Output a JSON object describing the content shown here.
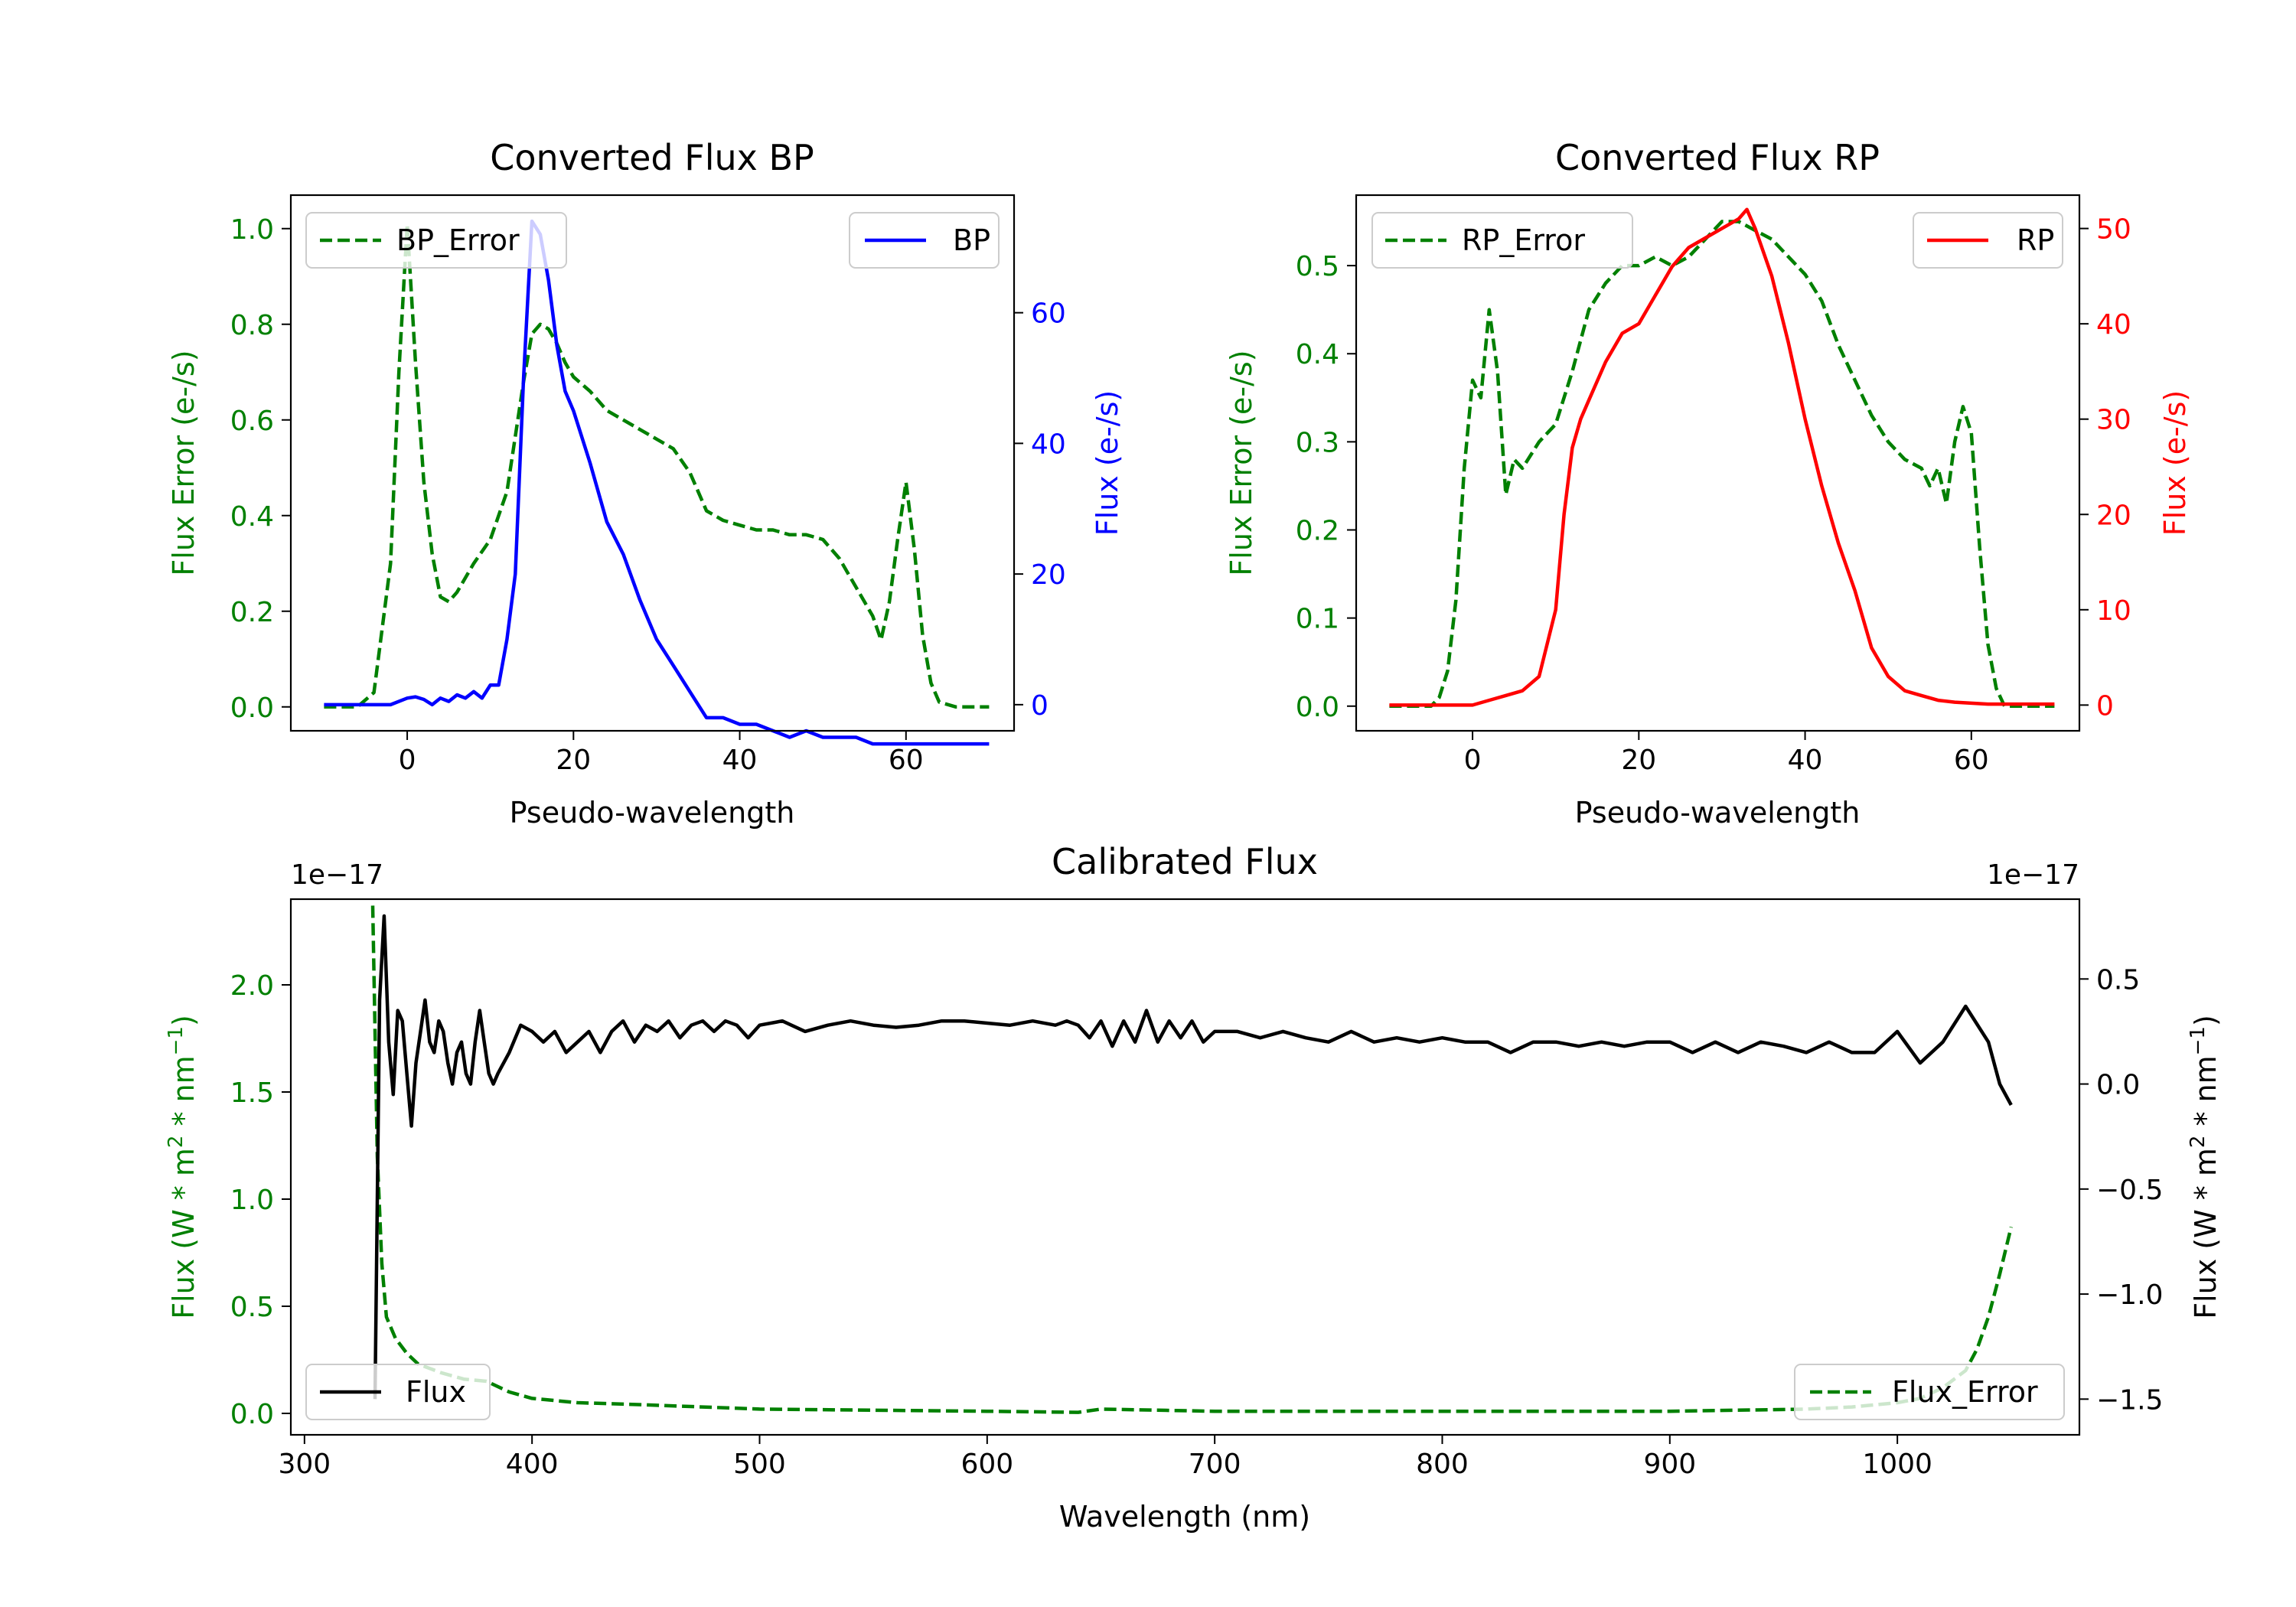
{
  "chart_data": [
    {
      "type": "line",
      "title": "Converted Flux BP",
      "xlabel": "Pseudo-wavelength",
      "ylabel_left": "Flux Error (e-/s)",
      "ylabel_right": "Flux (e-/s)",
      "xlim": [
        -14,
        73
      ],
      "ylim_left": [
        -0.05,
        1.07
      ],
      "ylim_right": [
        -4,
        78
      ],
      "xticks": [
        0,
        20,
        40,
        60
      ],
      "yticks_left": [
        0.0,
        0.2,
        0.4,
        0.6,
        0.8,
        1.0
      ],
      "yticks_right": [
        0,
        20,
        40,
        60
      ],
      "left_color": "#008000",
      "right_color": "#0000ff",
      "series": [
        {
          "name": "BP_Error",
          "axis": "left",
          "style": "dashed",
          "color": "#008000",
          "legend_position": "upper left",
          "x": [
            -10,
            -6,
            -4,
            -2,
            -1,
            0,
            1,
            2,
            3,
            4,
            5,
            6,
            8,
            10,
            12,
            14,
            15,
            16,
            17,
            18,
            19,
            20,
            22,
            24,
            26,
            28,
            30,
            32,
            34,
            36,
            38,
            40,
            42,
            44,
            46,
            48,
            50,
            52,
            54,
            56,
            57,
            58,
            59,
            60,
            61,
            62,
            63,
            64,
            66,
            68,
            70
          ],
          "y": [
            0.0,
            0.0,
            0.03,
            0.3,
            0.7,
            1.01,
            0.72,
            0.47,
            0.32,
            0.23,
            0.22,
            0.24,
            0.3,
            0.35,
            0.45,
            0.68,
            0.78,
            0.8,
            0.79,
            0.76,
            0.72,
            0.69,
            0.66,
            0.62,
            0.6,
            0.58,
            0.56,
            0.54,
            0.49,
            0.41,
            0.39,
            0.38,
            0.37,
            0.37,
            0.36,
            0.36,
            0.35,
            0.31,
            0.25,
            0.19,
            0.14,
            0.22,
            0.35,
            0.47,
            0.33,
            0.15,
            0.05,
            0.01,
            0.0,
            0.0,
            0.0
          ]
        },
        {
          "name": "BP",
          "axis": "right",
          "style": "solid",
          "color": "#0000ff",
          "legend_position": "upper right",
          "x": [
            -10,
            -6,
            -2,
            0,
            1,
            2,
            3,
            4,
            5,
            6,
            7,
            8,
            9,
            10,
            11,
            12,
            13,
            14,
            15,
            16,
            17,
            18,
            19,
            20,
            22,
            24,
            26,
            28,
            30,
            32,
            34,
            36,
            38,
            40,
            42,
            44,
            46,
            48,
            50,
            52,
            54,
            56,
            58,
            60,
            62,
            64,
            66,
            68,
            70
          ],
          "y": [
            0,
            0,
            0,
            1,
            1.2,
            0.8,
            0,
            1,
            0.5,
            1.5,
            1,
            2,
            1,
            3,
            3,
            10,
            20,
            50,
            74,
            72,
            65,
            55,
            48,
            45,
            37,
            28,
            23,
            16,
            10,
            6,
            2,
            -2,
            -2,
            -3,
            -3,
            -4,
            -5,
            -4,
            -5,
            -5,
            -5,
            -6,
            -6,
            -6,
            -6,
            -6,
            -6,
            -6,
            -6
          ]
        }
      ]
    },
    {
      "type": "line",
      "title": "Converted Flux RP",
      "xlabel": "Pseudo-wavelength",
      "ylabel_left": "Flux Error (e-/s)",
      "ylabel_right": "Flux (e-/s)",
      "xlim": [
        -14,
        73
      ],
      "ylim_left": [
        -0.028,
        0.58
      ],
      "ylim_right": [
        -2.7,
        53.5
      ],
      "xticks": [
        0,
        20,
        40,
        60
      ],
      "yticks_left": [
        0.0,
        0.1,
        0.2,
        0.3,
        0.4,
        0.5
      ],
      "yticks_right": [
        0,
        10,
        20,
        30,
        40,
        50
      ],
      "left_color": "#008000",
      "right_color": "#ff0000",
      "series": [
        {
          "name": "RP_Error",
          "axis": "left",
          "style": "dashed",
          "color": "#008000",
          "legend_position": "upper left",
          "x": [
            -10,
            -5,
            -4,
            -3,
            -2,
            -1,
            0,
            1,
            2,
            3,
            4,
            5,
            6,
            8,
            10,
            12,
            14,
            16,
            18,
            20,
            22,
            24,
            26,
            28,
            30,
            32,
            34,
            36,
            38,
            40,
            42,
            44,
            46,
            48,
            50,
            52,
            54,
            55,
            56,
            57,
            58,
            59,
            60,
            61,
            62,
            63,
            64,
            66,
            68,
            70
          ],
          "y": [
            0.0,
            0.0,
            0.01,
            0.04,
            0.12,
            0.27,
            0.37,
            0.35,
            0.45,
            0.38,
            0.24,
            0.28,
            0.27,
            0.3,
            0.32,
            0.38,
            0.45,
            0.48,
            0.5,
            0.5,
            0.51,
            0.5,
            0.51,
            0.53,
            0.55,
            0.55,
            0.54,
            0.53,
            0.51,
            0.49,
            0.46,
            0.41,
            0.37,
            0.33,
            0.3,
            0.28,
            0.27,
            0.25,
            0.27,
            0.23,
            0.3,
            0.34,
            0.31,
            0.18,
            0.07,
            0.02,
            0.0,
            0.0,
            0.0,
            0.0
          ]
        },
        {
          "name": "RP",
          "axis": "right",
          "style": "solid",
          "color": "#ff0000",
          "legend_position": "upper right",
          "x": [
            -10,
            -6,
            -2,
            0,
            2,
            4,
            6,
            8,
            10,
            11,
            12,
            13,
            14,
            16,
            18,
            20,
            22,
            24,
            26,
            28,
            30,
            32,
            33,
            34,
            36,
            38,
            40,
            42,
            44,
            46,
            48,
            50,
            52,
            54,
            56,
            58,
            60,
            62,
            64,
            66,
            68,
            70
          ],
          "y": [
            0,
            0,
            0,
            0,
            0.5,
            1,
            1.5,
            3,
            10,
            20,
            27,
            30,
            32,
            36,
            39,
            40,
            43,
            46,
            48,
            49,
            50,
            51,
            52,
            50,
            45,
            38,
            30,
            23,
            17,
            12,
            6,
            3,
            1.5,
            1,
            0.5,
            0.3,
            0.2,
            0.1,
            0.1,
            0.1,
            0.1,
            0.1
          ]
        }
      ]
    },
    {
      "type": "line",
      "title": "Calibrated Flux",
      "xlabel": "Wavelength (nm)",
      "ylabel_left_parts": [
        "Flux (W * m",
        "2",
        " * nm",
        "−1",
        ")"
      ],
      "ylabel_right_parts": [
        "Flux (W * m",
        "2",
        " * nm",
        "−1",
        ")"
      ],
      "offset_label_left": "1e−17",
      "offset_label_right": "1e−17",
      "xlim": [
        294,
        1080
      ],
      "ylim_left": [
        -0.1,
        2.4
      ],
      "ylim_right": [
        -1.67,
        0.88
      ],
      "xticks": [
        300,
        400,
        500,
        600,
        700,
        800,
        900,
        1000
      ],
      "yticks_left": [
        0.0,
        0.5,
        1.0,
        1.5,
        2.0
      ],
      "yticks_right": [
        -1.5,
        -1.0,
        -0.5,
        0.0,
        0.5
      ],
      "left_color": "#008000",
      "right_color": "#000000",
      "series": [
        {
          "name": "Flux_Error",
          "axis": "left",
          "style": "dashed",
          "color": "#008000",
          "legend_position": "lower right",
          "x": [
            330,
            332,
            334,
            336,
            340,
            345,
            350,
            360,
            370,
            380,
            390,
            400,
            420,
            450,
            500,
            550,
            600,
            640,
            650,
            700,
            800,
            900,
            960,
            980,
            1000,
            1010,
            1020,
            1030,
            1035,
            1040,
            1045,
            1050
          ],
          "y": [
            2.37,
            1.2,
            0.7,
            0.45,
            0.35,
            0.28,
            0.23,
            0.19,
            0.16,
            0.15,
            0.1,
            0.07,
            0.05,
            0.04,
            0.02,
            0.015,
            0.01,
            0.005,
            0.02,
            0.01,
            0.01,
            0.01,
            0.02,
            0.03,
            0.05,
            0.07,
            0.12,
            0.2,
            0.3,
            0.45,
            0.65,
            0.87
          ]
        },
        {
          "name": "Flux",
          "axis": "right",
          "style": "solid",
          "color": "#000000",
          "legend_position": "lower left",
          "x": [
            331,
            333,
            335,
            337,
            339,
            341,
            343,
            345,
            347,
            349,
            351,
            353,
            355,
            357,
            359,
            361,
            363,
            365,
            367,
            369,
            371,
            373,
            375,
            377,
            379,
            381,
            383,
            385,
            390,
            395,
            400,
            405,
            410,
            415,
            420,
            425,
            430,
            435,
            440,
            445,
            450,
            455,
            460,
            465,
            470,
            475,
            480,
            485,
            490,
            495,
            500,
            510,
            520,
            530,
            540,
            550,
            560,
            570,
            580,
            590,
            600,
            610,
            620,
            630,
            635,
            640,
            645,
            650,
            655,
            660,
            665,
            670,
            675,
            680,
            685,
            690,
            695,
            700,
            710,
            720,
            730,
            740,
            750,
            760,
            770,
            780,
            790,
            800,
            810,
            820,
            830,
            840,
            850,
            860,
            870,
            880,
            890,
            900,
            910,
            920,
            930,
            940,
            950,
            960,
            970,
            980,
            990,
            1000,
            1010,
            1020,
            1030,
            1040,
            1045,
            1050
          ],
          "y": [
            -1.5,
            0.4,
            0.8,
            0.2,
            -0.05,
            0.35,
            0.3,
            0.05,
            -0.2,
            0.1,
            0.25,
            0.4,
            0.2,
            0.15,
            0.3,
            0.25,
            0.1,
            0.0,
            0.15,
            0.2,
            0.05,
            0.0,
            0.2,
            0.35,
            0.2,
            0.05,
            0.0,
            0.05,
            0.15,
            0.28,
            0.25,
            0.2,
            0.25,
            0.15,
            0.2,
            0.25,
            0.15,
            0.25,
            0.3,
            0.2,
            0.28,
            0.25,
            0.3,
            0.22,
            0.28,
            0.3,
            0.25,
            0.3,
            0.28,
            0.22,
            0.28,
            0.3,
            0.25,
            0.28,
            0.3,
            0.28,
            0.27,
            0.28,
            0.3,
            0.3,
            0.29,
            0.28,
            0.3,
            0.28,
            0.3,
            0.28,
            0.22,
            0.3,
            0.18,
            0.3,
            0.2,
            0.35,
            0.2,
            0.3,
            0.22,
            0.3,
            0.2,
            0.25,
            0.25,
            0.22,
            0.25,
            0.22,
            0.2,
            0.25,
            0.2,
            0.22,
            0.2,
            0.22,
            0.2,
            0.2,
            0.15,
            0.2,
            0.2,
            0.18,
            0.2,
            0.18,
            0.2,
            0.2,
            0.15,
            0.2,
            0.15,
            0.2,
            0.18,
            0.15,
            0.2,
            0.15,
            0.15,
            0.25,
            0.1,
            0.2,
            0.37,
            0.2,
            0.0,
            -0.1
          ]
        }
      ]
    }
  ]
}
